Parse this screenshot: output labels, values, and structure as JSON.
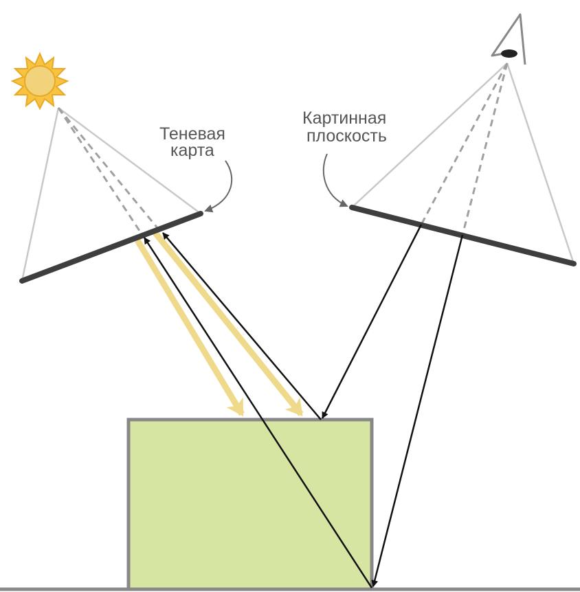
{
  "labels": {
    "shadow_map_line1": "Теневая",
    "shadow_map_line2": "карта",
    "picture_plane_line1": "Картинная",
    "picture_plane_line2": "плоскость"
  },
  "colors": {
    "sun_fill": "#F2D27A",
    "sun_rays": "#F2B82E",
    "light_beam": "#EFD98A",
    "object_fill": "#D6E6A2",
    "object_stroke": "#888888",
    "plane": "#3E3E3E",
    "frustum": "#C8C8C8",
    "dashed": "#A0A0A0",
    "ray": "#111111",
    "text": "#555555"
  },
  "icons": {
    "light_source": "sun-icon",
    "viewer": "eye-icon"
  }
}
